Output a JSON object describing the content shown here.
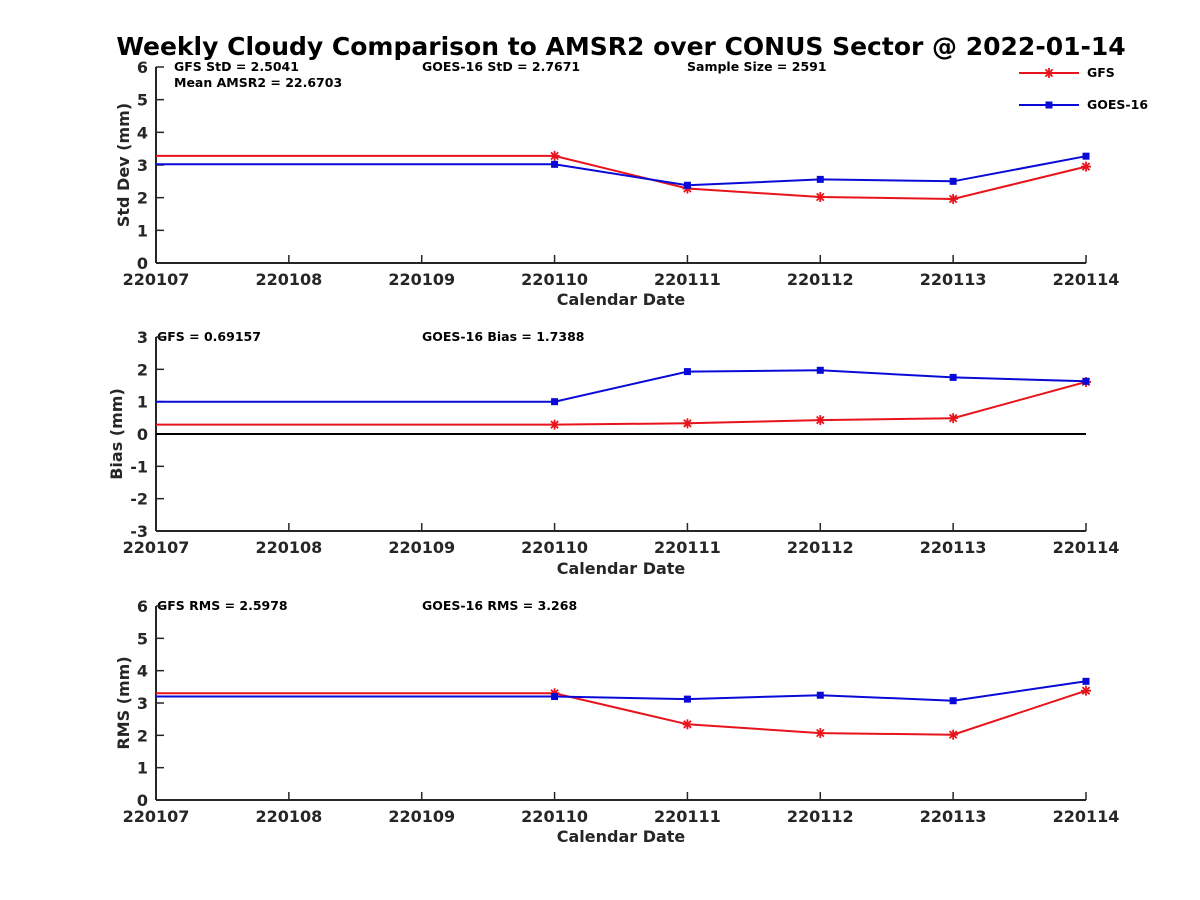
{
  "title": "Weekly Cloudy Comparison to AMSR2 over CONUS Sector @ 2022-01-14",
  "colors": {
    "GFS": "#e8141c",
    "GOES-16": "#0a0ad8",
    "zero_line": "#000000"
  },
  "legend": {
    "placement": "top-right",
    "items": [
      {
        "label": "GFS",
        "marker": "asterisk"
      },
      {
        "label": "GOES-16",
        "marker": "square"
      }
    ]
  },
  "chart_data": [
    {
      "type": "line",
      "id": "std",
      "xlabel": "Calendar Date",
      "ylabel": "Std Dev (mm)",
      "ylim": [
        0,
        6
      ],
      "yticks": [
        "0",
        "1",
        "2",
        "3",
        "4",
        "5",
        "6"
      ],
      "x": [
        "220107",
        "220108",
        "220109",
        "220110",
        "220111",
        "220112",
        "220113",
        "220114"
      ],
      "marker_start_index": 3,
      "series": [
        {
          "name": "GFS",
          "values": [
            3.28,
            3.28,
            3.28,
            3.28,
            2.28,
            2.02,
            1.96,
            2.95
          ]
        },
        {
          "name": "GOES-16",
          "values": [
            3.02,
            3.02,
            3.02,
            3.02,
            2.38,
            2.56,
            2.5,
            3.27
          ]
        }
      ],
      "annotations": [
        "GFS StD = 2.5041",
        "Mean AMSR2 = 22.6703",
        "GOES-16 StD = 2.7671",
        "Sample Size = 2591"
      ]
    },
    {
      "type": "line",
      "id": "bias",
      "xlabel": "Calendar Date",
      "ylabel": "Bias (mm)",
      "ylim": [
        -3,
        3
      ],
      "yticks": [
        "-3",
        "-2",
        "-1",
        "0",
        "1",
        "2",
        "3"
      ],
      "zero_line": true,
      "x": [
        "220107",
        "220108",
        "220109",
        "220110",
        "220111",
        "220112",
        "220113",
        "220114"
      ],
      "marker_start_index": 3,
      "series": [
        {
          "name": "GFS",
          "values": [
            0.29,
            0.29,
            0.29,
            0.29,
            0.33,
            0.43,
            0.49,
            1.61
          ]
        },
        {
          "name": "GOES-16",
          "values": [
            1.0,
            1.0,
            1.0,
            1.0,
            1.93,
            1.97,
            1.75,
            1.63
          ]
        }
      ],
      "annotations": [
        "GFS = 0.69157",
        "GOES-16 Bias  = 1.7388"
      ]
    },
    {
      "type": "line",
      "id": "rms",
      "xlabel": "Calendar Date",
      "ylabel": "RMS (mm)",
      "ylim": [
        0,
        6
      ],
      "yticks": [
        "0",
        "1",
        "2",
        "3",
        "4",
        "5",
        "6"
      ],
      "x": [
        "220107",
        "220108",
        "220109",
        "220110",
        "220111",
        "220112",
        "220113",
        "220114"
      ],
      "marker_start_index": 3,
      "series": [
        {
          "name": "GFS",
          "values": [
            3.3,
            3.3,
            3.3,
            3.3,
            2.34,
            2.07,
            2.02,
            3.38
          ]
        },
        {
          "name": "GOES-16",
          "values": [
            3.2,
            3.2,
            3.2,
            3.2,
            3.12,
            3.24,
            3.07,
            3.67
          ]
        }
      ],
      "annotations": [
        "GFS RMS = 2.5978",
        "GOES-16 RMS = 3.268"
      ]
    }
  ]
}
